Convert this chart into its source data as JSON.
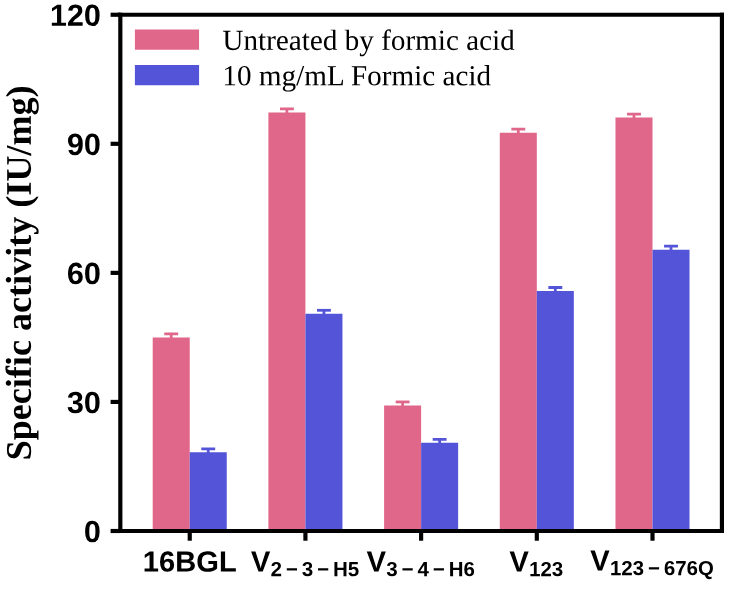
{
  "chart_data": {
    "type": "bar",
    "ylabel": "Specific activity (IU/mg)",
    "categories": [
      "16BGL",
      "V$_{2−3−H5}$",
      "V$_{3−4−H6}$",
      "V$_{123}$",
      "V$_{123−676Q}$"
    ],
    "series": [
      {
        "name": "Untreated by formic acid",
        "color": "#e0668a",
        "values": [
          45.0,
          97.3,
          29.2,
          92.6,
          96.1
        ],
        "errors": [
          0.8,
          0.8,
          0.8,
          0.8,
          0.8
        ]
      },
      {
        "name": "10 mg/mL Formic acid",
        "color": "#5454d9",
        "values": [
          18.3,
          50.5,
          20.5,
          55.8,
          65.4
        ],
        "errors": [
          0.8,
          0.8,
          0.8,
          0.8,
          0.8
        ]
      }
    ],
    "ylim": [
      0,
      120
    ],
    "yticks": [
      0,
      30,
      60,
      90,
      120
    ],
    "grid": false,
    "legend": "top left"
  }
}
